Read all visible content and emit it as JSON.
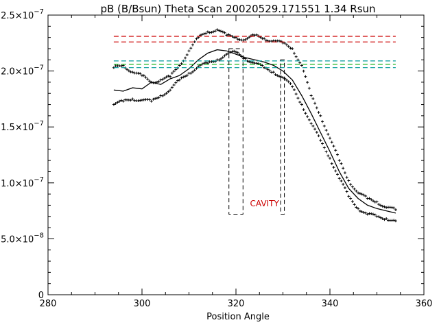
{
  "chart_data": {
    "type": "scatter",
    "title": "pB (B/Bsun) Theta Scan 20020529.171551 1.34 Rsun",
    "xlabel": "Position Angle",
    "ylabel": "",
    "xlim": [
      280,
      360
    ],
    "ylim": [
      0,
      2.5e-07
    ],
    "grid": false,
    "x_ticks": [
      {
        "value": 280,
        "label": "280"
      },
      {
        "value": 300,
        "label": "300"
      },
      {
        "value": 320,
        "label": "320"
      },
      {
        "value": 340,
        "label": "340"
      },
      {
        "value": 360,
        "label": "360"
      }
    ],
    "x_minor_step": 5,
    "y_ticks": [
      {
        "value": 0,
        "mant": "0",
        "exp": ""
      },
      {
        "value": 5e-08,
        "mant": "5.0×10",
        "exp": "−8"
      },
      {
        "value": 1e-07,
        "mant": "1.0×10",
        "exp": "−7"
      },
      {
        "value": 1.5e-07,
        "mant": "1.5×10",
        "exp": "−7"
      },
      {
        "value": 2e-07,
        "mant": "2.0×10",
        "exp": "−7"
      },
      {
        "value": 2.5e-07,
        "mant": "2.5×10",
        "exp": "−7"
      }
    ],
    "y_minor_step": 1e-08,
    "reference_lines": [
      {
        "y": 2.31e-07,
        "x": [
          294,
          354
        ],
        "color": "#cc0000"
      },
      {
        "y": 2.26e-07,
        "x": [
          294,
          354
        ],
        "color": "#cc0000"
      },
      {
        "y": 2.09e-07,
        "x": [
          294,
          354
        ],
        "color": "#009999"
      },
      {
        "y": 2.06e-07,
        "x": [
          294,
          354
        ],
        "color": "#00aa00"
      },
      {
        "y": 2.03e-07,
        "x": [
          294,
          354
        ],
        "color": "#009999"
      }
    ],
    "cavity_boxes": [
      {
        "x": [
          318.5,
          321.5
        ],
        "y": [
          7.2e-08,
          2.2e-07
        ]
      },
      {
        "x": [
          329.5,
          330.3
        ],
        "y": [
          7.2e-08,
          2.1e-07
        ]
      }
    ],
    "annotations": [
      {
        "text": "CAVITY",
        "x": 323,
        "y": 7.9e-08,
        "color": "#cc0000"
      }
    ],
    "series": [
      {
        "style": "line",
        "x": [
          294,
          296,
          298,
          300,
          302,
          304,
          306,
          308,
          310,
          312,
          314,
          316,
          318,
          320,
          322,
          324,
          326,
          328,
          330,
          332,
          334,
          336,
          338,
          340,
          342,
          344,
          346,
          348,
          350,
          352,
          354
        ],
        "y": [
          1.83e-07,
          1.82e-07,
          1.85e-07,
          1.84e-07,
          1.9e-07,
          1.88e-07,
          1.93e-07,
          1.96e-07,
          2.02e-07,
          2.1e-07,
          2.16e-07,
          2.19e-07,
          2.18e-07,
          2.15e-07,
          2.12e-07,
          2.1e-07,
          2.08e-07,
          2.05e-07,
          2e-07,
          1.92e-07,
          1.78e-07,
          1.62e-07,
          1.45e-07,
          1.28e-07,
          1.1e-07,
          9.5e-08,
          8.6e-08,
          8e-08,
          7.7e-08,
          7.5e-08,
          7.3e-08
        ]
      },
      {
        "style": "points",
        "x": [
          294,
          296,
          298,
          300,
          302,
          304,
          306,
          308,
          310,
          312,
          314,
          316,
          318,
          320,
          322,
          324,
          326,
          328,
          330,
          332,
          334,
          336,
          338,
          340,
          342,
          344,
          346,
          348,
          350,
          352,
          354
        ],
        "y": [
          2.03e-07,
          2.05e-07,
          1.99e-07,
          1.96e-07,
          1.9e-07,
          1.92e-07,
          1.95e-07,
          2.05e-07,
          2.18e-07,
          2.3e-07,
          2.35e-07,
          2.37e-07,
          2.32e-07,
          2.3e-07,
          2.28e-07,
          2.32e-07,
          2.29e-07,
          2.27e-07,
          2.25e-07,
          2.2e-07,
          2.05e-07,
          1.78e-07,
          1.6e-07,
          1.4e-07,
          1.2e-07,
          1.02e-07,
          9.1e-08,
          8.6e-08,
          8.3e-08,
          7.8e-08,
          7.6e-08
        ]
      },
      {
        "style": "points",
        "x": [
          294,
          296,
          298,
          300,
          302,
          304,
          306,
          308,
          310,
          312,
          314,
          316,
          318,
          320,
          322,
          324,
          326,
          328,
          330,
          332,
          334,
          336,
          338,
          340,
          342,
          344,
          346,
          348,
          350,
          352,
          354
        ],
        "y": [
          1.7e-07,
          1.73e-07,
          1.75e-07,
          1.74e-07,
          1.73e-07,
          1.78e-07,
          1.83e-07,
          1.92e-07,
          1.98e-07,
          2.04e-07,
          2.07e-07,
          2.1e-07,
          2.15e-07,
          2.17e-07,
          2.11e-07,
          2.07e-07,
          2.03e-07,
          1.99e-07,
          1.94e-07,
          1.86e-07,
          1.7e-07,
          1.53e-07,
          1.38e-07,
          1.22e-07,
          1.04e-07,
          8.8e-08,
          7.7e-08,
          7.2e-08,
          7e-08,
          6.8e-08,
          6.6e-08
        ]
      }
    ]
  }
}
